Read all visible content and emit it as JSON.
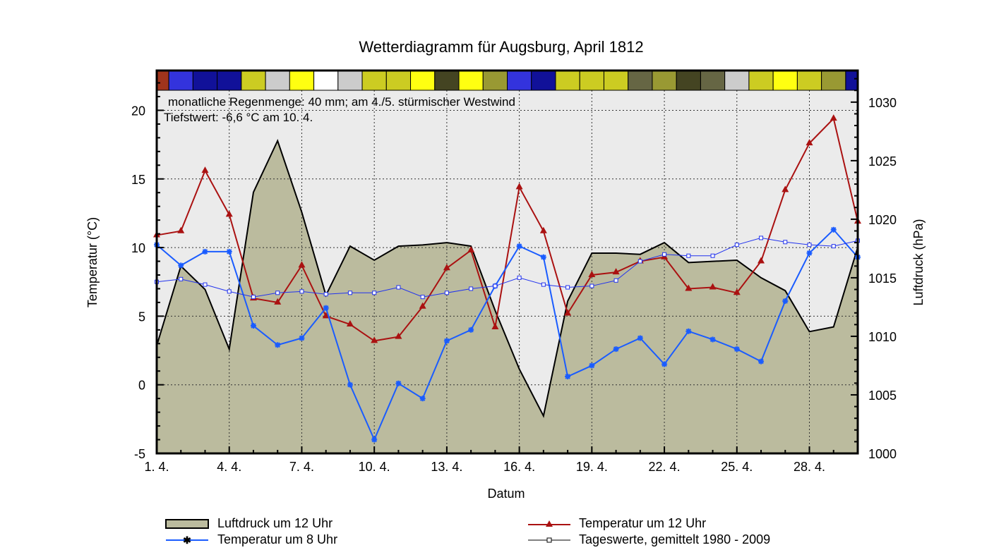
{
  "chart_data": {
    "type": "line",
    "title": "Wetterdiagramm für Augsburg, April 1812",
    "xlabel": "Datum",
    "ylabel": "Temperatur (°C)",
    "ylabel_right": "Luftdruck (hPa)",
    "ylim": [
      -5,
      22.9
    ],
    "ylim_right": [
      1000,
      1032.7
    ],
    "grid": true,
    "days": [
      1,
      2,
      3,
      4,
      5,
      6,
      7,
      8,
      9,
      10,
      11,
      12,
      13,
      14,
      15,
      16,
      17,
      18,
      19,
      20,
      21,
      22,
      23,
      24,
      25,
      26,
      27,
      28,
      29,
      30
    ],
    "x_ticks": [
      1,
      4,
      7,
      10,
      13,
      16,
      19,
      22,
      25,
      28
    ],
    "x_tick_labels": [
      "1. 4.",
      "4. 4.",
      "7. 4.",
      "10. 4.",
      "13. 4.",
      "16. 4.",
      "19. 4.",
      "22. 4.",
      "25. 4.",
      "28. 4."
    ],
    "y_ticks": [
      -5,
      0,
      5,
      10,
      15,
      20
    ],
    "y_tick_labels": [
      "-5",
      "0",
      "5",
      "10",
      "15",
      "20"
    ],
    "y_right_ticks": [
      1000,
      1005,
      1010,
      1015,
      1020,
      1025,
      1030
    ],
    "y_right_tick_labels": [
      "1000",
      "1005",
      "1010",
      "1015",
      "1020",
      "1025",
      "1030"
    ],
    "annotations": [
      "monatliche Regenmenge: 40 mm;  am 4./5. stürmischer Westwind",
      "Tiefstwert: -6,6 °C am 10. 4."
    ],
    "weather_colors": [
      "#a0341c",
      "#3333dd",
      "#111199",
      "#111199",
      "#cccc22",
      "#cccccc",
      "#ffff11",
      "#ffffff",
      "#cccccc",
      "#cccc22",
      "#cccc22",
      "#ffff11",
      "#444422",
      "#ffff11",
      "#999933",
      "#3333dd",
      "#111199",
      "#cccc22",
      "#cccc22",
      "#cccc22",
      "#666644",
      "#999933",
      "#444422",
      "#666644",
      "#cccccc",
      "#cccc22",
      "#ffff11",
      "#cccc22",
      "#999933",
      "#111199"
    ],
    "series": [
      {
        "name": "Luftdruck um 12 Uhr",
        "axis": "right",
        "kind": "area",
        "color": "#bbbb9e",
        "values": [
          1009.2,
          1016.0,
          1014.0,
          1008.9,
          1022.3,
          1026.7,
          1020.6,
          1013.5,
          1017.7,
          1016.5,
          1017.7,
          1017.8,
          1018.0,
          1017.7,
          1012.2,
          1007.2,
          1003.2,
          1013.0,
          1017.1,
          1017.1,
          1017.0,
          1018.0,
          1016.3,
          1016.4,
          1016.5,
          1015.0,
          1013.9,
          1010.4,
          1010.8,
          1017.6
        ]
      },
      {
        "name": "Temperatur um 12 Uhr",
        "axis": "left",
        "kind": "triangle",
        "color": "#aa1111",
        "values": [
          10.9,
          11.2,
          15.6,
          12.4,
          6.3,
          6.0,
          8.7,
          5.0,
          4.4,
          3.2,
          3.5,
          5.7,
          8.5,
          9.8,
          4.2,
          14.4,
          11.2,
          5.2,
          8.0,
          8.2,
          9.0,
          9.3,
          7.0,
          7.1,
          6.7,
          9.0,
          14.2,
          17.6,
          19.4,
          11.9
        ]
      },
      {
        "name": "Temperatur um 8 Uhr",
        "axis": "left",
        "kind": "star",
        "color": "#1a5cff",
        "values": [
          10.2,
          8.7,
          9.7,
          9.7,
          4.3,
          2.9,
          3.4,
          5.6,
          0.0,
          -4.0,
          0.1,
          -1.0,
          3.2,
          4.0,
          7.2,
          10.1,
          9.3,
          0.6,
          1.4,
          2.6,
          3.4,
          1.5,
          3.9,
          3.3,
          2.6,
          1.7,
          6.1,
          9.6,
          11.3,
          9.3
        ]
      },
      {
        "name": "Tageswerte, gemittelt 1980 - 2009",
        "axis": "left",
        "kind": "square",
        "color": "#2233ee",
        "values": [
          7.5,
          7.7,
          7.3,
          6.8,
          6.4,
          6.7,
          6.8,
          6.6,
          6.7,
          6.7,
          7.1,
          6.4,
          6.7,
          7.0,
          7.2,
          7.8,
          7.3,
          7.1,
          7.2,
          7.6,
          9.0,
          9.5,
          9.4,
          9.4,
          10.2,
          10.7,
          10.4,
          10.2,
          10.1,
          10.5
        ]
      }
    ]
  }
}
